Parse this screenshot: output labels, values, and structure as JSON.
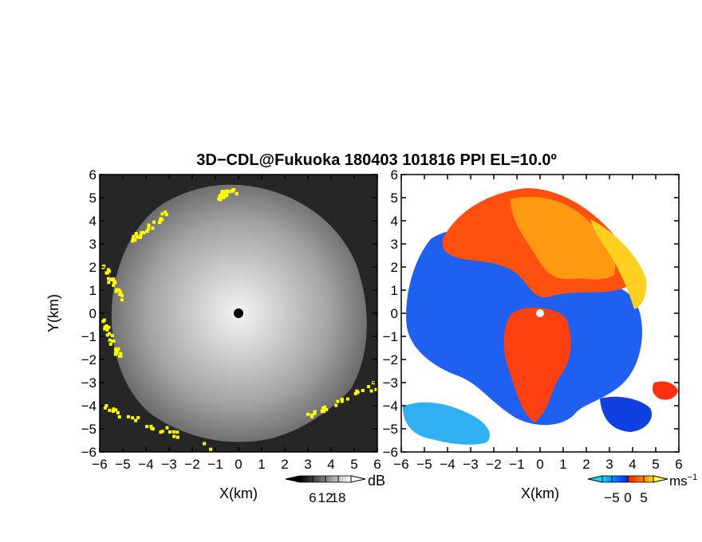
{
  "title": "3D−CDL@Fukuoka 180403 101816 PPI EL=10.0º",
  "chart_data": [
    {
      "type": "heatmap",
      "quantity": "signal-to-noise ratio",
      "xlabel": "X(km)",
      "ylabel": "Y(km)",
      "xlim": [
        -6,
        6
      ],
      "ylim": [
        -6,
        6
      ],
      "xticks": [
        -6,
        -5,
        -4,
        -3,
        -2,
        -1,
        0,
        1,
        2,
        3,
        4,
        5,
        6
      ],
      "yticks": [
        -6,
        -5,
        -4,
        -3,
        -2,
        -1,
        0,
        1,
        2,
        3,
        4,
        5,
        6
      ],
      "xtick_labels": [
        "−6",
        "−5",
        "−4",
        "−3",
        "−2",
        "−1",
        "0",
        "1",
        "2",
        "3",
        "4",
        "5",
        "6"
      ],
      "ytick_labels": [
        "−6",
        "−5",
        "−4",
        "−3",
        "−2",
        "−1",
        "0",
        "1",
        "2",
        "3",
        "4",
        "5",
        "6"
      ],
      "colorbar": {
        "unit": "dB",
        "ticks": [
          6,
          12,
          18
        ],
        "tick_labels": [
          "6",
          "12",
          "18"
        ],
        "range": [
          0,
          24
        ],
        "colors": [
          "#000000",
          "#ffffff"
        ],
        "extend": "both"
      },
      "radar_location": [
        0,
        0
      ],
      "echo_radius_km": 5.5,
      "clutter_color": "#ffff00"
    },
    {
      "type": "heatmap",
      "quantity": "radial velocity",
      "xlabel": "X(km)",
      "xlim": [
        -6,
        6
      ],
      "ylim": [
        -6,
        6
      ],
      "xticks": [
        -6,
        -5,
        -4,
        -3,
        -2,
        -1,
        0,
        1,
        2,
        3,
        4,
        5,
        6
      ],
      "yticks": [
        -6,
        -5,
        -4,
        -3,
        -2,
        -1,
        0,
        1,
        2,
        3,
        4,
        5,
        6
      ],
      "xtick_labels": [
        "−6",
        "−5",
        "−4",
        "−3",
        "−2",
        "−1",
        "0",
        "1",
        "2",
        "3",
        "4",
        "5",
        "6"
      ],
      "ytick_labels": [
        "−6",
        "−5",
        "−4",
        "−3",
        "−2",
        "−1",
        "0",
        "1",
        "2",
        "3",
        "4",
        "5",
        "6"
      ],
      "colorbar": {
        "unit": "ms",
        "unit_sup": "−1",
        "ticks": [
          -5,
          0,
          5
        ],
        "tick_labels": [
          "−5",
          "0",
          "5"
        ],
        "range": [
          -8,
          8
        ],
        "colors": [
          "#00c8ff",
          "#0040ff",
          "#ff2000",
          "#ffe000"
        ],
        "extend": "both"
      },
      "radar_location": [
        0,
        0
      ]
    }
  ]
}
